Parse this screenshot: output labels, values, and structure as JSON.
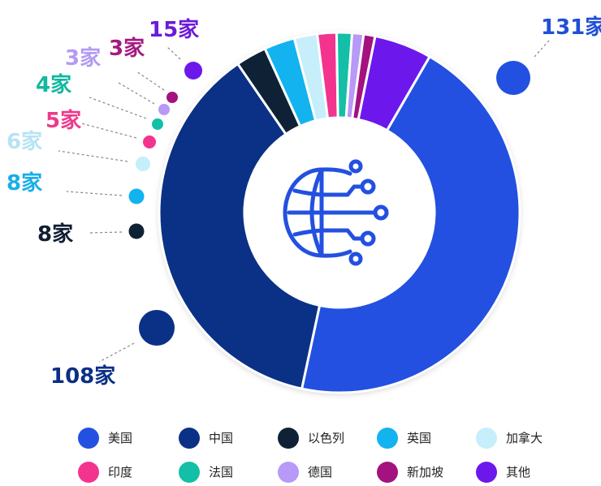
{
  "chart_data": {
    "type": "pie",
    "donut": true,
    "unit": "家",
    "center_icon": "globe-network-icon",
    "legend_position": "bottom",
    "slices": [
      {
        "name": "美国",
        "value": 131,
        "label": "131家",
        "color": "#2350e0",
        "label_color": "#1f4fd8"
      },
      {
        "name": "中国",
        "value": 108,
        "label": "108家",
        "color": "#0a3185",
        "label_color": "#0a2f85"
      },
      {
        "name": "以色列",
        "value": 8,
        "label": "8家",
        "color": "#0f2235",
        "label_color": "#101e33"
      },
      {
        "name": "英国",
        "value": 8,
        "label": "8家",
        "color": "#12b3ee",
        "label_color": "#18aee8"
      },
      {
        "name": "加拿大",
        "value": 6,
        "label": "6家",
        "color": "#c6eefb",
        "label_color": "#b7e3f3"
      },
      {
        "name": "印度",
        "value": 5,
        "label": "5家",
        "color": "#f2348f",
        "label_color": "#ee3a8c"
      },
      {
        "name": "法国",
        "value": 4,
        "label": "4家",
        "color": "#13bfa6",
        "label_color": "#12b8a0"
      },
      {
        "name": "德国",
        "value": 3,
        "label": "3家",
        "color": "#b799f7",
        "label_color": "#b39af3"
      },
      {
        "name": "新加坡",
        "value": 3,
        "label": "3家",
        "color": "#a3127f",
        "label_color": "#a51a80"
      },
      {
        "name": "其他",
        "value": 15,
        "label": "15家",
        "color": "#6c18ec",
        "label_color": "#6b1bd9"
      }
    ]
  }
}
